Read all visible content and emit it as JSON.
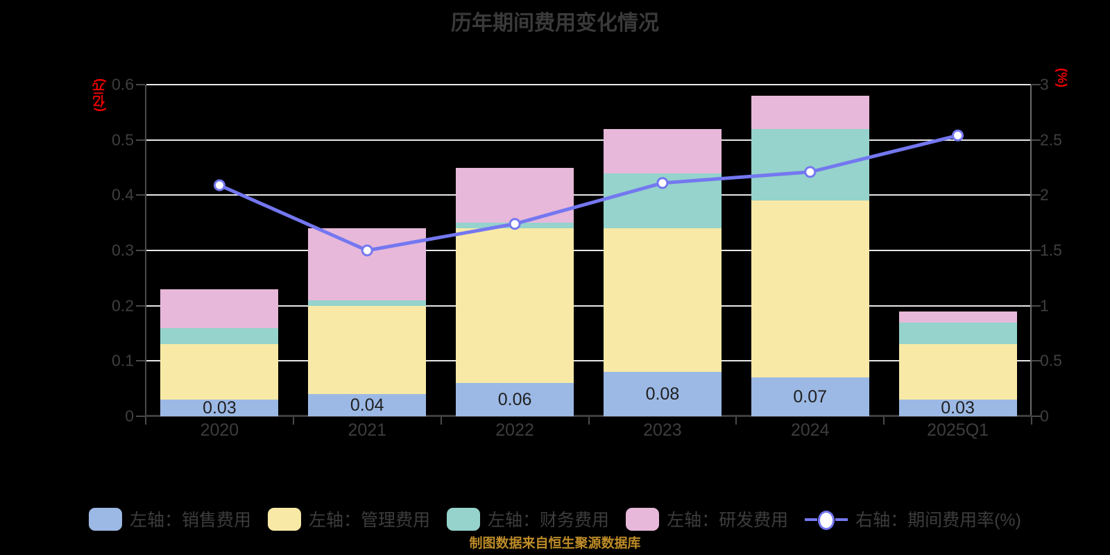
{
  "title": "历年期间费用变化情况",
  "footer_note": "制图数据来自恒生聚源数据库",
  "left_axis": {
    "label": "(亿元)",
    "ticks": [
      "0",
      "0.1",
      "0.2",
      "0.3",
      "0.4",
      "0.5",
      "0.6"
    ],
    "min": 0,
    "max": 0.6
  },
  "right_axis": {
    "label": "(%)",
    "ticks": [
      "0",
      "0.5",
      "1",
      "1.5",
      "2",
      "2.5",
      "3"
    ],
    "min": 0,
    "max": 3
  },
  "chart_data": {
    "type": "bar",
    "subtype": "stacked-bars-with-right-axis-line",
    "title": "历年期间费用变化情况",
    "categories": [
      "2020",
      "2021",
      "2022",
      "2023",
      "2024",
      "2025Q1"
    ],
    "series": [
      {
        "name": "左轴：销售费用",
        "type": "bar",
        "axis": "left",
        "color": "#9CB9E5",
        "values": [
          0.03,
          0.04,
          0.06,
          0.08,
          0.07,
          0.03
        ]
      },
      {
        "name": "左轴：管理费用",
        "type": "bar",
        "axis": "left",
        "color": "#F8E9A6",
        "values": [
          0.1,
          0.16,
          0.28,
          0.26,
          0.32,
          0.1
        ]
      },
      {
        "name": "左轴：财务费用",
        "type": "bar",
        "axis": "left",
        "color": "#95D3CC",
        "values": [
          0.03,
          0.01,
          0.01,
          0.1,
          0.13,
          0.04
        ]
      },
      {
        "name": "左轴：研发费用",
        "type": "bar",
        "axis": "left",
        "color": "#E7B8DA",
        "values": [
          0.07,
          0.13,
          0.1,
          0.08,
          0.06,
          0.02
        ]
      },
      {
        "name": "右轴：期间费用率(%)",
        "type": "line",
        "axis": "right",
        "color": "#7477F0",
        "values": [
          2.09,
          1.5,
          1.74,
          2.11,
          2.21,
          2.54
        ]
      }
    ],
    "bar_totals": [
      0.23,
      0.34,
      0.45,
      0.52,
      0.58,
      0.19
    ],
    "bar_labels": [
      "0.03",
      "0.04",
      "0.06",
      "0.08",
      "0.07",
      "0.03"
    ],
    "ylim_left": [
      0,
      0.6
    ],
    "ylim_right": [
      0,
      3
    ],
    "grid": true,
    "legend_position": "bottom"
  },
  "colors": {
    "background": "#000000",
    "title_text": "#3A3A3A",
    "axis_text": "#3F3F3F",
    "axis_line": "#4A4A4A",
    "grid_line": "#E8E8E8",
    "axis_unit_red": "#EE0000",
    "footer_orange": "#BE8C28",
    "bar_label_text": "#1F1F1F",
    "line_marker_fill": "#FFFFFF"
  }
}
